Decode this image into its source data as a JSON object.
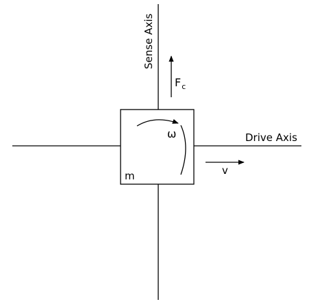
{
  "diagram": {
    "drive_axis_label": "Drive Axis",
    "sense_axis_label": "Sense Axis",
    "coriolis_force_label": "F",
    "coriolis_force_subscript": "c",
    "velocity_label": "v",
    "angular_velocity_label": "ω",
    "mass_label": "m",
    "colors": {
      "stroke": "#000000",
      "background": "#ffffff"
    }
  }
}
